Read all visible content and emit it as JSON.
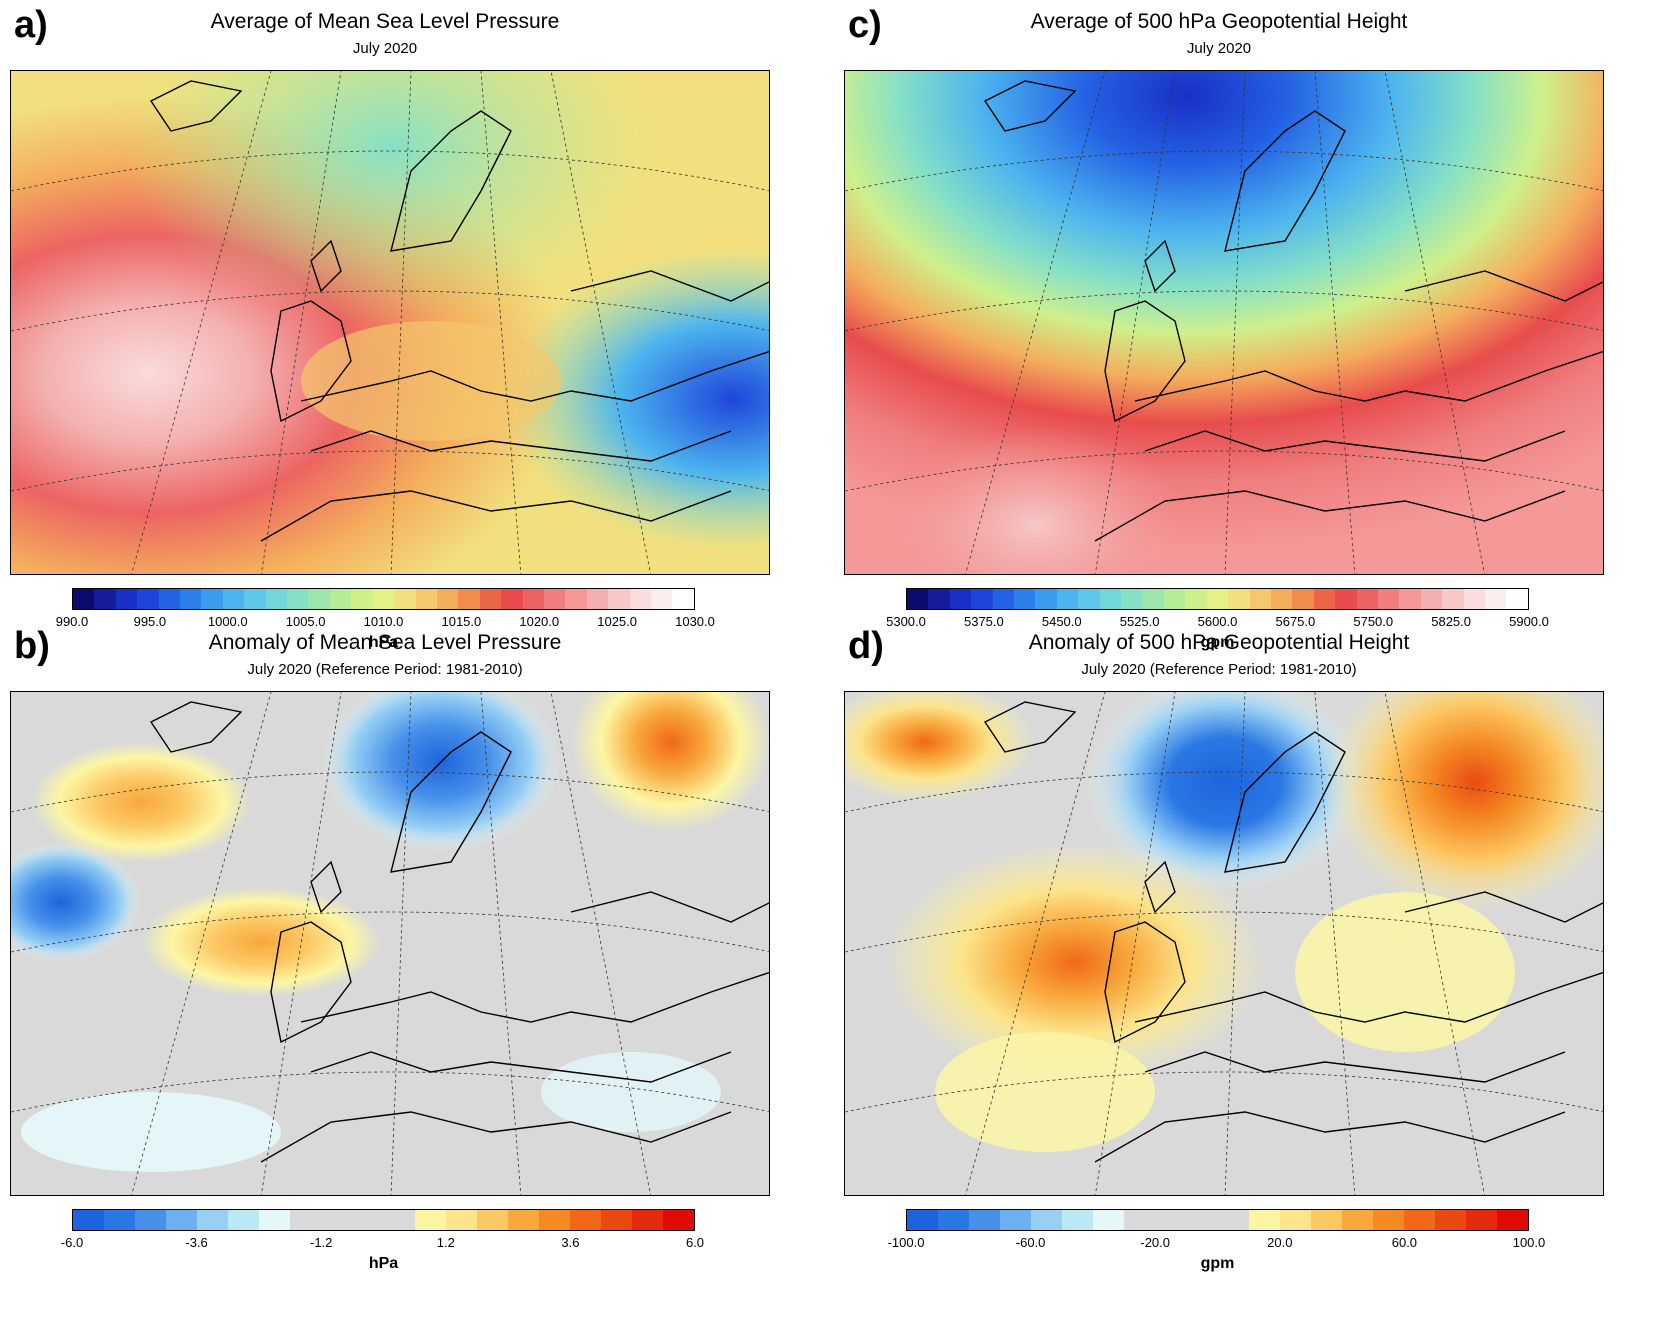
{
  "panels": [
    {
      "letter": "a)",
      "title": "Average of Mean Sea Level Pressure",
      "subtitle": "July 2020",
      "unit": "hPa",
      "colorbar": {
        "colors": [
          "#0b0a6e",
          "#141c9a",
          "#1a2fc4",
          "#1e46da",
          "#2462e4",
          "#2c80ea",
          "#3a9cee",
          "#4cb4ef",
          "#5ec8ea",
          "#72d6dc",
          "#86e0c6",
          "#9ce6ae",
          "#b4ec98",
          "#cef08c",
          "#e6f089",
          "#f2e07e",
          "#f4c86c",
          "#f4ae5c",
          "#f28c4e",
          "#ea6646",
          "#e84c4c",
          "#ec6462",
          "#f07e7e",
          "#f49898",
          "#f4b0b0",
          "#f6c8c8",
          "#fadcdc",
          "#fceeee",
          "#ffffff"
        ],
        "labels": [
          "990.0",
          "995.0",
          "1000.0",
          "1005.0",
          "1010.0",
          "1015.0",
          "1020.0",
          "1025.0",
          "1030.0"
        ]
      },
      "map_kind": "mslp_mean"
    },
    {
      "letter": "c)",
      "title": "Average of 500 hPa Geopotential Height",
      "subtitle": "July 2020",
      "unit": "gpm",
      "colorbar": {
        "colors": [
          "#0b0a6e",
          "#141c9a",
          "#1a2fc4",
          "#1e46da",
          "#2462e4",
          "#2c80ea",
          "#3a9cee",
          "#4cb4ef",
          "#5ec8ea",
          "#72d6dc",
          "#86e0c6",
          "#9ce6ae",
          "#b4ec98",
          "#cef08c",
          "#e6f089",
          "#f2e07e",
          "#f4c86c",
          "#f4ae5c",
          "#f28c4e",
          "#ea6646",
          "#e84c4c",
          "#ec6462",
          "#f07e7e",
          "#f49898",
          "#f4b0b0",
          "#f6c8c8",
          "#fadcdc",
          "#fceeee",
          "#ffffff"
        ],
        "labels": [
          "5300.0",
          "5375.0",
          "5450.0",
          "5525.0",
          "5600.0",
          "5675.0",
          "5750.0",
          "5825.0",
          "5900.0"
        ]
      },
      "map_kind": "z500_mean"
    },
    {
      "letter": "b)",
      "title": "Anomaly of Mean Sea Level Pressure",
      "subtitle": "July 2020 (Reference Period: 1981-2010)",
      "unit": "hPa",
      "colorbar": {
        "colors": [
          "#1e64dc",
          "#2a78e4",
          "#4690ea",
          "#6cb0f0",
          "#98d0f4",
          "#bce8f4",
          "#e4f8fa",
          "#d9d9d9",
          "#d9d9d9",
          "#d9d9d9",
          "#d9d9d9",
          "#fcf6a4",
          "#fce48a",
          "#fcc864",
          "#f8a83c",
          "#f48a22",
          "#f06818",
          "#ea4a12",
          "#e42a0c",
          "#e00a06"
        ],
        "labels": [
          "-6.0",
          "-3.6",
          "-1.2",
          "1.2",
          "3.6",
          "6.0"
        ]
      },
      "map_kind": "mslp_anom"
    },
    {
      "letter": "d)",
      "title": "Anomaly of 500 hPa Geopotential Height",
      "subtitle": "July 2020 (Reference Period: 1981-2010)",
      "unit": "gpm",
      "colorbar": {
        "colors": [
          "#1e64dc",
          "#2a78e4",
          "#4690ea",
          "#6cb0f0",
          "#98d0f4",
          "#bce8f4",
          "#e4f8fa",
          "#d9d9d9",
          "#d9d9d9",
          "#d9d9d9",
          "#d9d9d9",
          "#fcf6a4",
          "#fce48a",
          "#fcc864",
          "#f8a83c",
          "#f48a22",
          "#f06818",
          "#ea4a12",
          "#e42a0c",
          "#e00a06"
        ],
        "labels": [
          "-100.0",
          "-60.0",
          "-20.0",
          "20.0",
          "60.0",
          "100.0"
        ]
      },
      "map_kind": "z500_anom"
    }
  ]
}
